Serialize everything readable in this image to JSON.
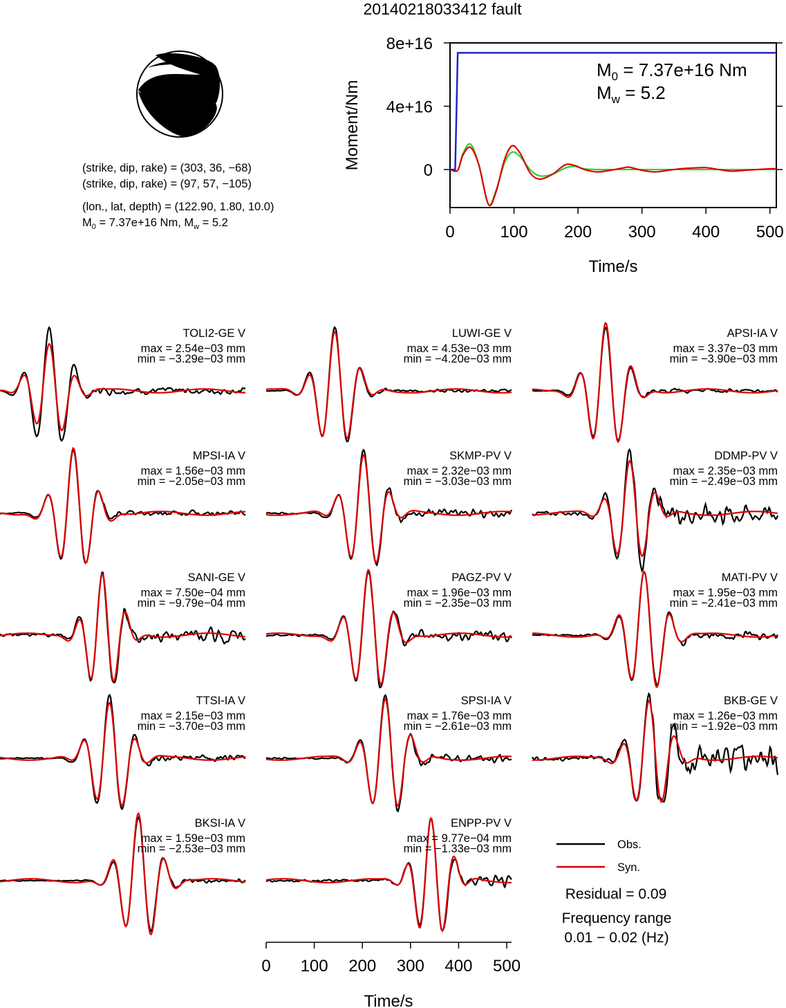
{
  "title": "20140218033412 fault",
  "focal_info": {
    "line1": "(strike, dip, rake) = (303, 36, −68)",
    "line2": "(strike, dip, rake) = (97, 57, −105)",
    "line3": "(lon., lat, depth) = (122.90, 1.80, 10.0)",
    "line4_m0": "M",
    "line4_sub0": "0",
    "line4_mid": " = 7.37e+16 Nm, M",
    "line4_subw": "w",
    "line4_end": " = 5.2"
  },
  "moment_panel": {
    "ylabel": "Moment/Nm",
    "xlabel": "Time/s",
    "m0_label": "M",
    "m0_sub": "0",
    "m0_value": " = 7.37e+16 Nm",
    "mw_label": "M",
    "mw_sub": "w",
    "mw_value": " = 5.2"
  },
  "legend": {
    "obs_label": "Obs.",
    "syn_label": "Syn.",
    "residual": "Residual = 0.09",
    "freq_title": "Frequency range",
    "freq_value": "0.01 − 0.02 (Hz)"
  },
  "colors": {
    "observed": "#000000",
    "synthetic": "#dd0000",
    "moment_rate": "#2222cc",
    "stf_green": "#33cc33"
  },
  "chart_data": [
    {
      "type": "line",
      "name_ref": "moment_panel",
      "xlabel": "Time/s",
      "ylabel": "Moment/Nm",
      "xlim": [
        0,
        510
      ],
      "ylim": [
        -2.4e+16,
        8e+16
      ],
      "xticks": [
        0,
        100,
        200,
        300,
        400,
        500
      ],
      "yticks": [
        0,
        4e+16,
        8e+16
      ],
      "ytick_labels": [
        "0",
        "4e+16",
        "8e+16"
      ],
      "grid": false,
      "cumulative_moment": {
        "x": [
          0,
          8,
          10,
          12,
          510
        ],
        "y": [
          0,
          0,
          3.5e+16,
          7.37e+16,
          7.37e+16
        ]
      },
      "oscillation_red": {
        "x": [
          0,
          12,
          20,
          32,
          45,
          60,
          72,
          85,
          97,
          110,
          125,
          140,
          160,
          180,
          195,
          210,
          230,
          250,
          270,
          280,
          300,
          320,
          340,
          360,
          380,
          400,
          420,
          440,
          460,
          480,
          500,
          510
        ],
        "y": [
          0,
          -500000000000000.0,
          9000000000000000.0,
          1.4e+16,
          3000000000000000.0,
          -2.2e+16,
          -1.4e+16,
          6000000000000000.0,
          1.5e+16,
          1e+16,
          -2000000000000000.0,
          -6000000000000000.0,
          -3000000000000000.0,
          3000000000000000.0,
          2500000000000000.0,
          0.0,
          -1500000000000000.0,
          -500000000000000.0,
          1000000000000000.0,
          1500000000000000.0,
          -500000000000000.0,
          -1500000000000000.0,
          -500000000000000.0,
          500000000000000.0,
          1000000000000000.0,
          1200000000000000.0,
          0.0,
          -1000000000000000.0,
          -500000000000000.0,
          0.0,
          500000000000000.0,
          500000000000000.0
        ]
      },
      "oscillation_green": {
        "x": [
          0,
          12,
          20,
          32,
          45,
          60,
          72,
          85,
          97,
          110,
          125,
          140,
          160,
          180,
          195,
          210,
          230,
          250,
          300,
          350,
          400,
          450,
          510
        ],
        "y": [
          0,
          -500000000000000.0,
          1e+16,
          1.6e+16,
          3000000000000000.0,
          -2.2e+16,
          -1.3e+16,
          4000000000000000.0,
          1.1e+16,
          8000000000000000.0,
          0.0,
          -4000000000000000.0,
          -3000000000000000.0,
          1000000000000000.0,
          2000000000000000.0,
          500000000000000.0,
          0.0,
          0.0,
          0.0,
          0.0,
          0.0,
          0.0,
          0.0
        ]
      }
    },
    {
      "type": "line",
      "name_ref": "waveforms",
      "xlabel": "Time/s",
      "xlim": [
        0,
        510
      ],
      "xticks": [
        0,
        100,
        200,
        300,
        400,
        500
      ],
      "stations": [
        {
          "name": "TOLI2-GE V",
          "max": "max = 2.54e−03 mm",
          "min": "min = −3.29e−03 mm",
          "t0": 105,
          "period": 55,
          "amp_obs": 1.0,
          "amp_syn": 0.75,
          "noise": 0.08
        },
        {
          "name": "LUWI-GE V",
          "max": "max = 4.53e−03 mm",
          "min": "min = −4.20e−03 mm",
          "t0": 145,
          "period": 55,
          "amp_obs": 1.0,
          "amp_syn": 0.95,
          "noise": 0.04
        },
        {
          "name": "APSI-IA V",
          "max": "max = 3.37e−03 mm",
          "min": "min = −3.90e−03 mm",
          "t0": 155,
          "period": 55,
          "amp_obs": 1.0,
          "amp_syn": 1.05,
          "noise": 0.05
        },
        {
          "name": "MPSI-IA V",
          "max": "max = 1.56e−03 mm",
          "min": "min = −2.05e−03 mm",
          "t0": 155,
          "period": 55,
          "amp_obs": 1.0,
          "amp_syn": 1.0,
          "noise": 0.06
        },
        {
          "name": "SKMP-PV V",
          "max": "max = 2.32e−03 mm",
          "min": "min = −3.03e−03 mm",
          "t0": 205,
          "period": 55,
          "amp_obs": 1.0,
          "amp_syn": 0.95,
          "noise": 0.1
        },
        {
          "name": "DDMP-PV V",
          "max": "max = 2.35e−03 mm",
          "min": "min = −2.49e−03 mm",
          "t0": 205,
          "period": 55,
          "amp_obs": 1.0,
          "amp_syn": 0.85,
          "noise": 0.25
        },
        {
          "name": "SANI-GE V",
          "max": "max = 7.50e−04 mm",
          "min": "min = −9.79e−04 mm",
          "t0": 215,
          "period": 50,
          "amp_obs": 1.0,
          "amp_syn": 0.95,
          "noise": 0.18
        },
        {
          "name": "PAGZ-PV V",
          "max": "max = 1.96e−03 mm",
          "min": "min = −2.35e−03 mm",
          "t0": 215,
          "period": 55,
          "amp_obs": 1.0,
          "amp_syn": 1.0,
          "noise": 0.12
        },
        {
          "name": "MATI-PV V",
          "max": "max = 1.95e−03 mm",
          "min": "min = −2.41e−03 mm",
          "t0": 235,
          "period": 55,
          "amp_obs": 1.0,
          "amp_syn": 1.0,
          "noise": 0.1
        },
        {
          "name": "TTSI-IA V",
          "max": "max = 2.15e−03 mm",
          "min": "min = −3.70e−03 mm",
          "t0": 230,
          "period": 55,
          "amp_obs": 1.0,
          "amp_syn": 0.9,
          "noise": 0.08
        },
        {
          "name": "SPSI-IA V",
          "max": "max = 1.76e−03 mm",
          "min": "min = −2.61e−03 mm",
          "t0": 250,
          "period": 55,
          "amp_obs": 1.0,
          "amp_syn": 0.95,
          "noise": 0.1
        },
        {
          "name": "BKB-GE V",
          "max": "max = 1.26e−03 mm",
          "min": "min = −1.92e−03 mm",
          "t0": 245,
          "period": 55,
          "amp_obs": 1.0,
          "amp_syn": 0.9,
          "noise": 0.3
        },
        {
          "name": "BKSI-IA V",
          "max": "max = 1.59e−03 mm",
          "min": "min = −2.53e−03 mm",
          "t0": 290,
          "period": 55,
          "amp_obs": 1.0,
          "amp_syn": 1.05,
          "noise": 0.05
        },
        {
          "name": "ENPP-PV V",
          "max": "max = 9.77e−04 mm",
          "min": "min = −1.33e−03 mm",
          "t0": 345,
          "period": 50,
          "amp_obs": 1.0,
          "amp_syn": 1.0,
          "noise": 0.15
        }
      ]
    }
  ]
}
